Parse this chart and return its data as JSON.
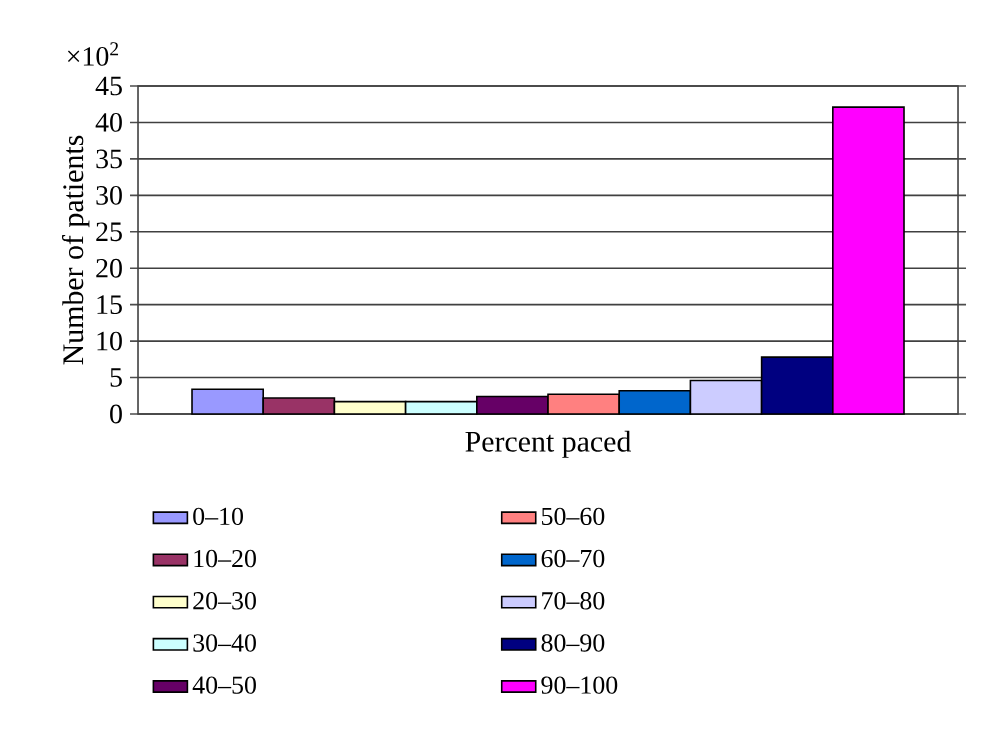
{
  "chart_data": {
    "type": "bar",
    "xlabel": "Percent paced",
    "ylabel": "Number of patients",
    "annotations": [
      "×10$^{2}$"
    ],
    "categories": [
      null
    ],
    "ylim": [
      0,
      45
    ],
    "yticks": [
      0,
      5,
      10,
      15,
      20,
      25,
      30,
      35,
      40,
      45
    ],
    "grid": "y",
    "legend": "bottom",
    "series": [
      {
        "name": "0–10",
        "color": "#9999ff",
        "values": [
          3.4
        ]
      },
      {
        "name": "10–20",
        "color": "#993366",
        "values": [
          2.2
        ]
      },
      {
        "name": "20–30",
        "color": "#ffffcc",
        "values": [
          1.7
        ]
      },
      {
        "name": "30–40",
        "color": "#ccffff",
        "values": [
          1.7
        ]
      },
      {
        "name": "40–50",
        "color": "#660066",
        "values": [
          2.4
        ]
      },
      {
        "name": "50–60",
        "color": "#ff8080",
        "values": [
          2.7
        ]
      },
      {
        "name": "60–70",
        "color": "#0066cc",
        "values": [
          3.2
        ]
      },
      {
        "name": "70–80",
        "color": "#ccccff",
        "values": [
          4.6
        ]
      },
      {
        "name": "80–90",
        "color": "#000080",
        "values": [
          7.8
        ]
      },
      {
        "name": "90–100",
        "color": "#ff00ff",
        "values": [
          42.1
        ]
      }
    ]
  }
}
